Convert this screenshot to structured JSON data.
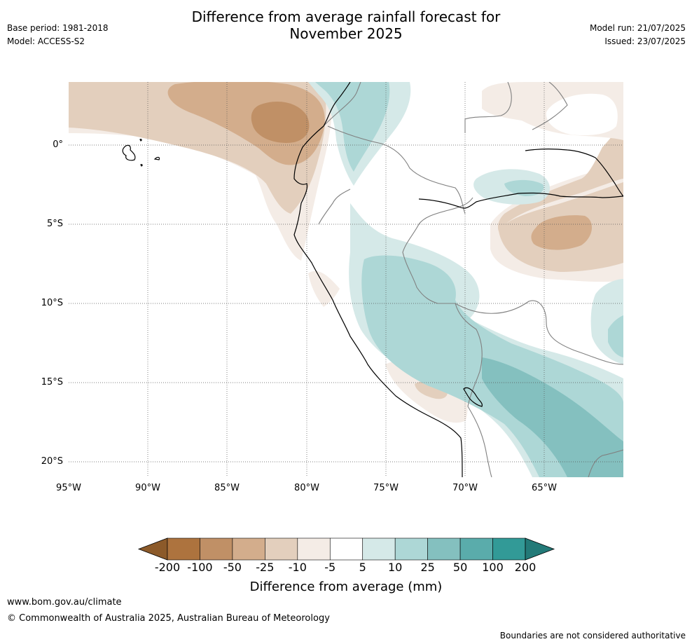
{
  "header": {
    "title_line1": "Difference from average rainfall forecast for",
    "title_line2": "November 2025",
    "base_period": "Base period: 1981-2018",
    "model": "Model: ACCESS-S2",
    "model_run": "Model run: 21/07/2025",
    "issued": "Issued: 23/07/2025"
  },
  "map": {
    "lat_labels": [
      "0°",
      "5°S",
      "10°S",
      "15°S",
      "20°S"
    ],
    "lon_labels": [
      "95°W",
      "90°W",
      "85°W",
      "80°W",
      "75°W",
      "70°W",
      "65°W"
    ],
    "colors": {
      "dry_200": "#8c5a2a",
      "dry_100": "#ad733e",
      "dry_50": "#c09066",
      "dry_25": "#d3ad8c",
      "dry_10": "#e3cfbd",
      "dry_5": "#f4ece6",
      "neutral": "#ffffff",
      "wet_5": "#d5e9e8",
      "wet_10": "#add7d6",
      "wet_25": "#84c0bf",
      "wet_50": "#5aacab",
      "wet_100": "#329a97",
      "wet_200": "#237a78",
      "coast": "#000000",
      "border": "#808080"
    }
  },
  "colorbar": {
    "ticks": [
      "-200",
      "-100",
      "-50",
      "-25",
      "-10",
      "-5",
      "5",
      "10",
      "25",
      "50",
      "100",
      "200"
    ],
    "title": "Difference from average (mm)"
  },
  "footer": {
    "website": "www.bom.gov.au/climate",
    "copyright": "© Commonwealth of Australia 2025, Australian Bureau of Meteorology",
    "disclaimer": "Boundaries are not considered authoritative"
  }
}
